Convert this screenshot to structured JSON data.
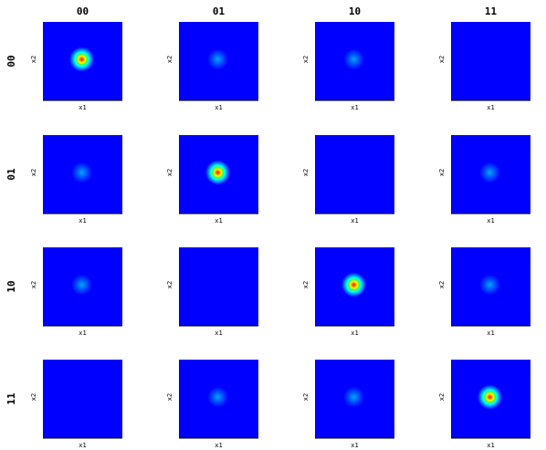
{
  "chart_data": {
    "type": "heatmap",
    "layout": "4x4 grid of density heatmaps",
    "column_titles": [
      "00",
      "01",
      "10",
      "11"
    ],
    "row_titles": [
      "00",
      "01",
      "10",
      "11"
    ],
    "xlabel": "x1",
    "ylabel": "x2",
    "colormap": "jet",
    "background_color": "#0000ff",
    "grid": false,
    "intensity_matrix": [
      [
        1.0,
        0.35,
        0.35,
        0.12
      ],
      [
        0.35,
        1.0,
        0.12,
        0.35
      ],
      [
        0.35,
        0.12,
        1.0,
        0.35
      ],
      [
        0.12,
        0.35,
        0.35,
        1.0
      ]
    ]
  }
}
